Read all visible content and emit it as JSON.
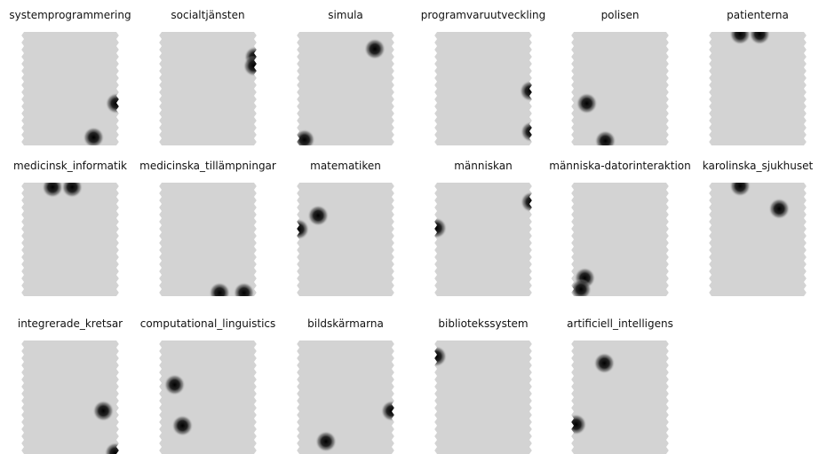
{
  "maps": [
    {
      "label": "systemprogrammering",
      "blobs": [
        [
          0.74,
          0.93
        ],
        [
          0.97,
          0.63
        ]
      ]
    },
    {
      "label": "socialtjänsten",
      "blobs": [
        [
          0.98,
          0.22
        ],
        [
          0.97,
          0.3
        ]
      ]
    },
    {
      "label": "simula",
      "blobs": [
        [
          0.8,
          0.15
        ],
        [
          0.08,
          0.95
        ]
      ]
    },
    {
      "label": "programvaruutveckling",
      "blobs": [
        [
          0.98,
          0.52
        ],
        [
          0.99,
          0.88
        ]
      ]
    },
    {
      "label": "polisen",
      "blobs": [
        [
          0.16,
          0.63
        ],
        [
          0.35,
          0.96
        ]
      ]
    },
    {
      "label": "patienterna",
      "blobs": [
        [
          0.32,
          0.02
        ],
        [
          0.52,
          0.02
        ]
      ]
    },
    {
      "label": "medicinsk_informatik",
      "blobs": [
        [
          0.32,
          0.04
        ],
        [
          0.52,
          0.04
        ]
      ]
    },
    {
      "label": "medicinska_tillämpningar",
      "blobs": [
        [
          0.62,
          0.97
        ],
        [
          0.87,
          0.97
        ]
      ]
    },
    {
      "label": "matematiken",
      "blobs": [
        [
          0.22,
          0.29
        ],
        [
          0.02,
          0.41
        ]
      ]
    },
    {
      "label": "människan",
      "blobs": [
        [
          0.02,
          0.4
        ],
        [
          0.99,
          0.17
        ]
      ]
    },
    {
      "label": "människa-datorinteraktion",
      "blobs": [
        [
          0.14,
          0.84
        ],
        [
          0.1,
          0.94
        ]
      ]
    },
    {
      "label": "karolinska_sjukhuset",
      "blobs": [
        [
          0.32,
          0.03
        ],
        [
          0.72,
          0.23
        ]
      ]
    },
    {
      "label": "integrerade_kretsar",
      "blobs": [
        [
          0.84,
          0.62
        ],
        [
          0.96,
          0.99
        ]
      ]
    },
    {
      "label": "computational_linguistics",
      "blobs": [
        [
          0.16,
          0.39
        ],
        [
          0.24,
          0.75
        ]
      ]
    },
    {
      "label": "bildskärmarna",
      "blobs": [
        [
          0.3,
          0.89
        ],
        [
          0.97,
          0.62
        ]
      ]
    },
    {
      "label": "bibliotekssystem",
      "blobs": [
        [
          0.02,
          0.14
        ]
      ]
    },
    {
      "label": "artificiell_intelligens",
      "blobs": [
        [
          0.34,
          0.2
        ],
        [
          0.05,
          0.74
        ]
      ]
    }
  ]
}
